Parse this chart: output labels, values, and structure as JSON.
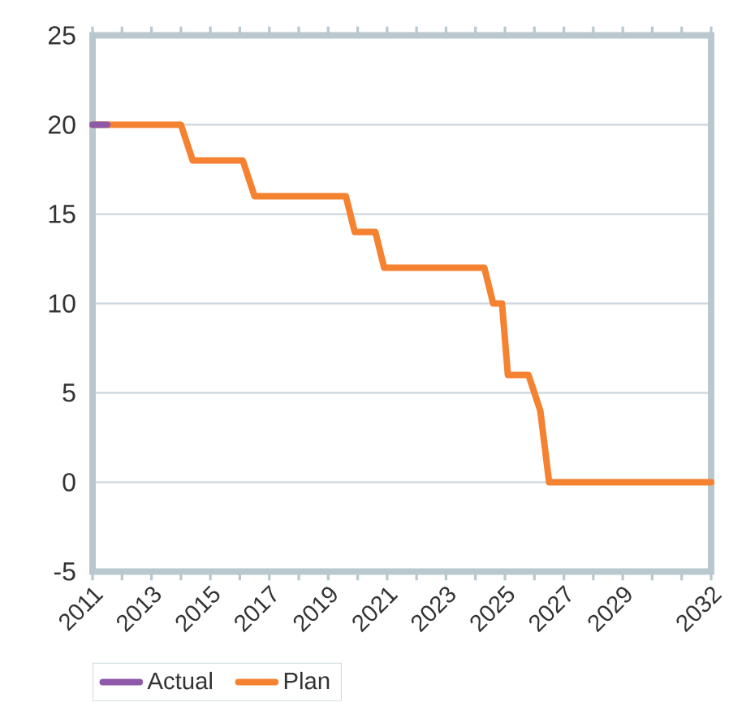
{
  "chart_data": {
    "type": "line",
    "xlim": [
      2011,
      2032
    ],
    "ylim": [
      -5,
      25
    ],
    "xticks": [
      2011,
      {
        "value": 2012,
        "label": null
      },
      2013,
      {
        "value": 2014,
        "label": null
      },
      2015,
      {
        "value": 2016,
        "label": null
      },
      2017,
      {
        "value": 2018,
        "label": null
      },
      2019,
      {
        "value": 2020,
        "label": null
      },
      2021,
      {
        "value": 2022,
        "label": null
      },
      2023,
      {
        "value": 2024,
        "label": null
      },
      2025,
      {
        "value": 2026,
        "label": null
      },
      2027,
      {
        "value": 2028,
        "label": null
      },
      2029,
      {
        "value": 2030,
        "label": null
      },
      {
        "value": 2031,
        "label": null
      },
      2032
    ],
    "yticks": [
      -5,
      0,
      5,
      10,
      15,
      20,
      25
    ],
    "grid": "y",
    "legend": "bottom",
    "line_style": "solid",
    "series": [
      {
        "name": "Actual",
        "color": "#8e59a8",
        "x": [
          2011,
          2011.5
        ],
        "values": [
          20,
          20
        ]
      },
      {
        "name": "Plan",
        "color": "#f58231",
        "x": [
          2011,
          2014.0,
          2014.4,
          2016.1,
          2016.5,
          2019.6,
          2019.9,
          2020.6,
          2020.9,
          2024.3,
          2024.6,
          2024.9,
          2025.1,
          2025.8,
          2026.2,
          2026.5,
          2032
        ],
        "values": [
          20,
          20,
          18,
          18,
          16,
          16,
          14,
          14,
          12,
          12,
          10,
          10,
          6,
          6,
          4,
          0,
          0
        ]
      }
    ]
  }
}
